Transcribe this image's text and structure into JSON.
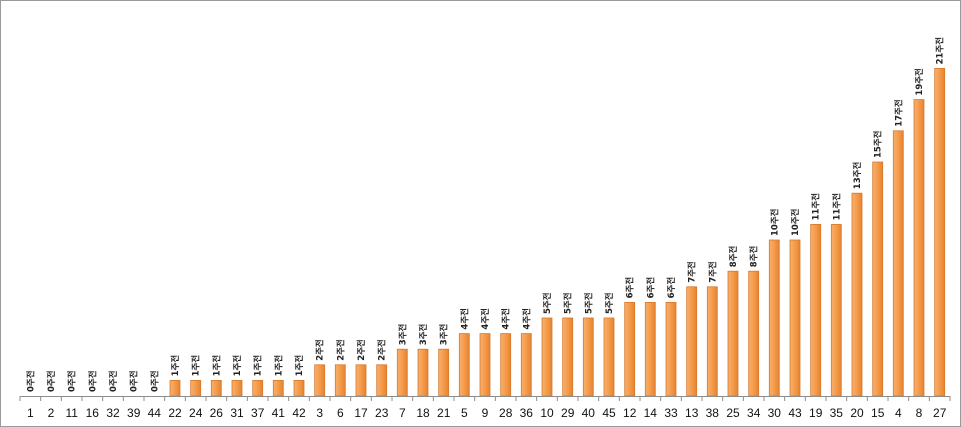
{
  "chart_data": {
    "type": "bar",
    "title": "",
    "xlabel": "",
    "ylabel": "",
    "ylim": [
      0,
      21
    ],
    "grid": false,
    "legend": "none",
    "categories": [
      "1",
      "2",
      "11",
      "16",
      "32",
      "39",
      "44",
      "22",
      "24",
      "26",
      "31",
      "37",
      "41",
      "42",
      "3",
      "6",
      "17",
      "23",
      "7",
      "18",
      "21",
      "5",
      "9",
      "28",
      "36",
      "10",
      "29",
      "40",
      "45",
      "12",
      "14",
      "33",
      "13",
      "38",
      "25",
      "34",
      "30",
      "43",
      "19",
      "35",
      "20",
      "15",
      "4",
      "8",
      "27"
    ],
    "values": [
      0,
      0,
      0,
      0,
      0,
      0,
      0,
      1,
      1,
      1,
      1,
      1,
      1,
      1,
      2,
      2,
      2,
      2,
      3,
      3,
      3,
      4,
      4,
      4,
      4,
      5,
      5,
      5,
      5,
      6,
      6,
      6,
      7,
      7,
      8,
      8,
      10,
      10,
      11,
      11,
      13,
      15,
      17,
      19,
      21
    ],
    "data_labels": [
      "0주전",
      "0주전",
      "0주전",
      "0주전",
      "0주전",
      "0주전",
      "0주전",
      "1주전",
      "1주전",
      "1주전",
      "1주전",
      "1주전",
      "1주전",
      "1주전",
      "2주전",
      "2주전",
      "2주전",
      "2주전",
      "3주전",
      "3주전",
      "3주전",
      "4주전",
      "4주전",
      "4주전",
      "4주전",
      "5주전",
      "5주전",
      "5주전",
      "5주전",
      "6주전",
      "6주전",
      "6주전",
      "7주전",
      "7주전",
      "8주전",
      "8주전",
      "10주전",
      "10주전",
      "11주전",
      "11주전",
      "13주전",
      "15주전",
      "17주전",
      "19주전",
      "21주전"
    ],
    "colors": {
      "bar_fill": "#f5a35a",
      "bar_stroke": "#d9782a",
      "axis": "#8c8c8c"
    }
  }
}
